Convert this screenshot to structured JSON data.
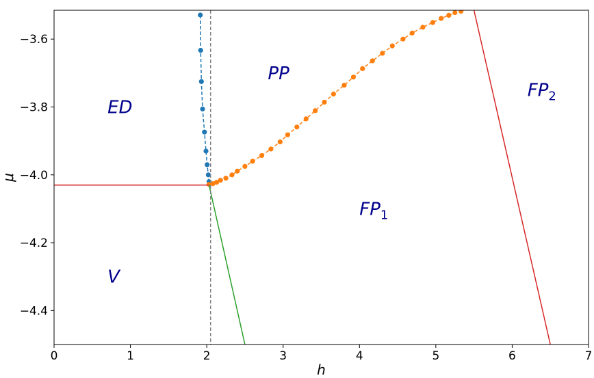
{
  "chart_data": {
    "type": "scatter",
    "xlabel": "h",
    "ylabel": "μ",
    "xlim": [
      0,
      7
    ],
    "ylim": [
      -4.5,
      -3.515
    ],
    "x_ticks": [
      0,
      1,
      2,
      3,
      4,
      5,
      6,
      7
    ],
    "x_tick_labels": [
      "0",
      "1",
      "2",
      "3",
      "4",
      "5",
      "6",
      "7"
    ],
    "y_ticks": [
      -4.4,
      -4.2,
      -4.0,
      -3.8,
      -3.6
    ],
    "y_tick_labels": [
      "−4.4",
      "−4.2",
      "−4.0",
      "−3.8",
      "−3.6"
    ],
    "grid": false,
    "series": [
      {
        "style": "dashed-markers",
        "color": "#1f77b4",
        "points": [
          [
            1.915,
            -3.529
          ],
          [
            1.92,
            -3.633
          ],
          [
            1.93,
            -3.725
          ],
          [
            1.945,
            -3.806
          ],
          [
            1.97,
            -3.874
          ],
          [
            1.99,
            -3.93
          ],
          [
            2.005,
            -3.97
          ],
          [
            2.02,
            -4.0
          ],
          [
            2.03,
            -4.02
          ]
        ]
      },
      {
        "style": "dashed-markers",
        "color": "#ff7f0e",
        "points": [
          [
            2.03,
            -4.028
          ],
          [
            2.08,
            -4.026
          ],
          [
            2.13,
            -4.022
          ],
          [
            2.18,
            -4.016
          ],
          [
            2.25,
            -4.01
          ],
          [
            2.33,
            -4.0
          ],
          [
            2.4,
            -3.989
          ],
          [
            2.5,
            -3.975
          ],
          [
            2.6,
            -3.96
          ],
          [
            2.72,
            -3.943
          ],
          [
            2.84,
            -3.924
          ],
          [
            2.96,
            -3.903
          ],
          [
            3.06,
            -3.882
          ],
          [
            3.18,
            -3.859
          ],
          [
            3.3,
            -3.835
          ],
          [
            3.42,
            -3.811
          ],
          [
            3.54,
            -3.786
          ],
          [
            3.66,
            -3.762
          ],
          [
            3.8,
            -3.736
          ],
          [
            3.92,
            -3.712
          ],
          [
            4.04,
            -3.687
          ],
          [
            4.17,
            -3.664
          ],
          [
            4.3,
            -3.642
          ],
          [
            4.43,
            -3.62
          ],
          [
            4.57,
            -3.6
          ],
          [
            4.69,
            -3.582
          ],
          [
            4.83,
            -3.565
          ],
          [
            4.96,
            -3.551
          ],
          [
            5.07,
            -3.539
          ],
          [
            5.17,
            -3.53
          ],
          [
            5.25,
            -3.522
          ],
          [
            5.33,
            -3.518
          ]
        ]
      },
      {
        "style": "solid",
        "color": "#d62728",
        "points": [
          [
            0,
            -4.03
          ],
          [
            2.03,
            -4.03
          ]
        ]
      },
      {
        "style": "solid",
        "color": "#2ca02c",
        "points": [
          [
            2.03,
            -4.03
          ],
          [
            2.5,
            -4.5
          ]
        ]
      },
      {
        "style": "solid",
        "color": "#d62728",
        "points": [
          [
            5.5,
            -3.515
          ],
          [
            6.5,
            -4.5
          ]
        ]
      },
      {
        "style": "dashed",
        "color": "#808080",
        "points": [
          [
            2.05,
            -3.515
          ],
          [
            2.05,
            -4.5
          ]
        ]
      }
    ],
    "annotations": [
      {
        "text": "ED",
        "sub": "",
        "x": 0.7,
        "y": -3.8
      },
      {
        "text": "PP",
        "sub": "",
        "x": 2.8,
        "y": -3.7
      },
      {
        "text": "FP",
        "sub": "2",
        "x": 6.2,
        "y": -3.75
      },
      {
        "text": "FP",
        "sub": "1",
        "x": 4.0,
        "y": -4.1
      },
      {
        "text": "V",
        "sub": "",
        "x": 0.7,
        "y": -4.3
      }
    ]
  }
}
